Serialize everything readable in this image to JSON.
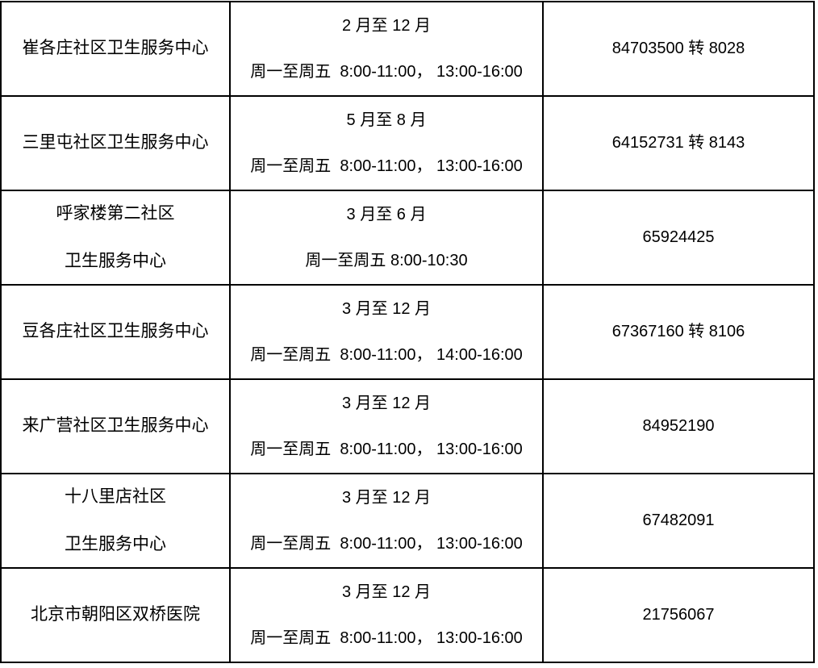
{
  "table": {
    "rows": [
      {
        "name": "崔各庄社区卫生服务中心",
        "months": "2 月至 12 月",
        "hours": "周一至周五  8:00-11:00， 13:00-16:00",
        "phone": "84703500 转 8028"
      },
      {
        "name": "三里屯社区卫生服务中心",
        "months": "5 月至 8 月",
        "hours": "周一至周五  8:00-11:00， 13:00-16:00",
        "phone": "64152731 转 8143"
      },
      {
        "name": "呼家楼第二社区",
        "name2": "卫生服务中心",
        "months": "3 月至 6 月",
        "hours": "周一至周五 8:00-10:30",
        "phone": "65924425"
      },
      {
        "name": "豆各庄社区卫生服务中心",
        "months": "3 月至 12 月",
        "hours": "周一至周五  8:00-11:00， 14:00-16:00",
        "phone": "67367160 转 8106"
      },
      {
        "name": "来广营社区卫生服务中心",
        "months": "3 月至 12 月",
        "hours": "周一至周五  8:00-11:00， 13:00-16:00",
        "phone": "84952190"
      },
      {
        "name": "十八里店社区",
        "name2": "卫生服务中心",
        "months": "3 月至 12 月",
        "hours": "周一至周五  8:00-11:00， 13:00-16:00",
        "phone": "67482091"
      },
      {
        "name": "北京市朝阳区双桥医院",
        "months": "3 月至 12 月",
        "hours": "周一至周五  8:00-11:00， 13:00-16:00",
        "phone": "21756067"
      }
    ]
  }
}
